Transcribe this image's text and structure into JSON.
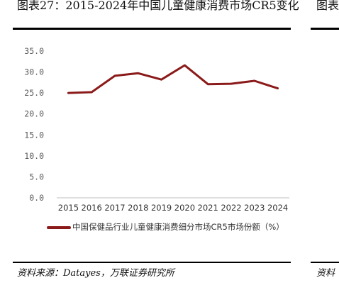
{
  "header": {
    "title": "图表27：2015-2024年中国儿童健康消费市场CR5变化",
    "title_right_fragment": "图表"
  },
  "footer": {
    "source": "资料来源：Datayes，万联证券研究所",
    "source_right_fragment": "资料"
  },
  "colors": {
    "series": "#8b1a1a",
    "grid": "#d9d9d9",
    "axis_text": "#595959"
  },
  "chart_data": {
    "type": "line",
    "title": "",
    "xlabel": "",
    "ylabel": "",
    "x": [
      "2015",
      "2016",
      "2017",
      "2018",
      "2019",
      "2020",
      "2021",
      "2022",
      "2023",
      "2024"
    ],
    "yticks": [
      "0.0",
      "5.0",
      "10.0",
      "15.0",
      "20.0",
      "25.0",
      "30.0",
      "35.0"
    ],
    "ylim": [
      0,
      35
    ],
    "grid": false,
    "legend": "bottom-left",
    "series": [
      {
        "name": "中国保健品行业儿童健康消费细分市场CR5市场份额（%）",
        "values": [
          25.0,
          25.2,
          29.1,
          29.7,
          28.2,
          31.6,
          27.1,
          27.2,
          27.9,
          26.1
        ]
      }
    ]
  }
}
